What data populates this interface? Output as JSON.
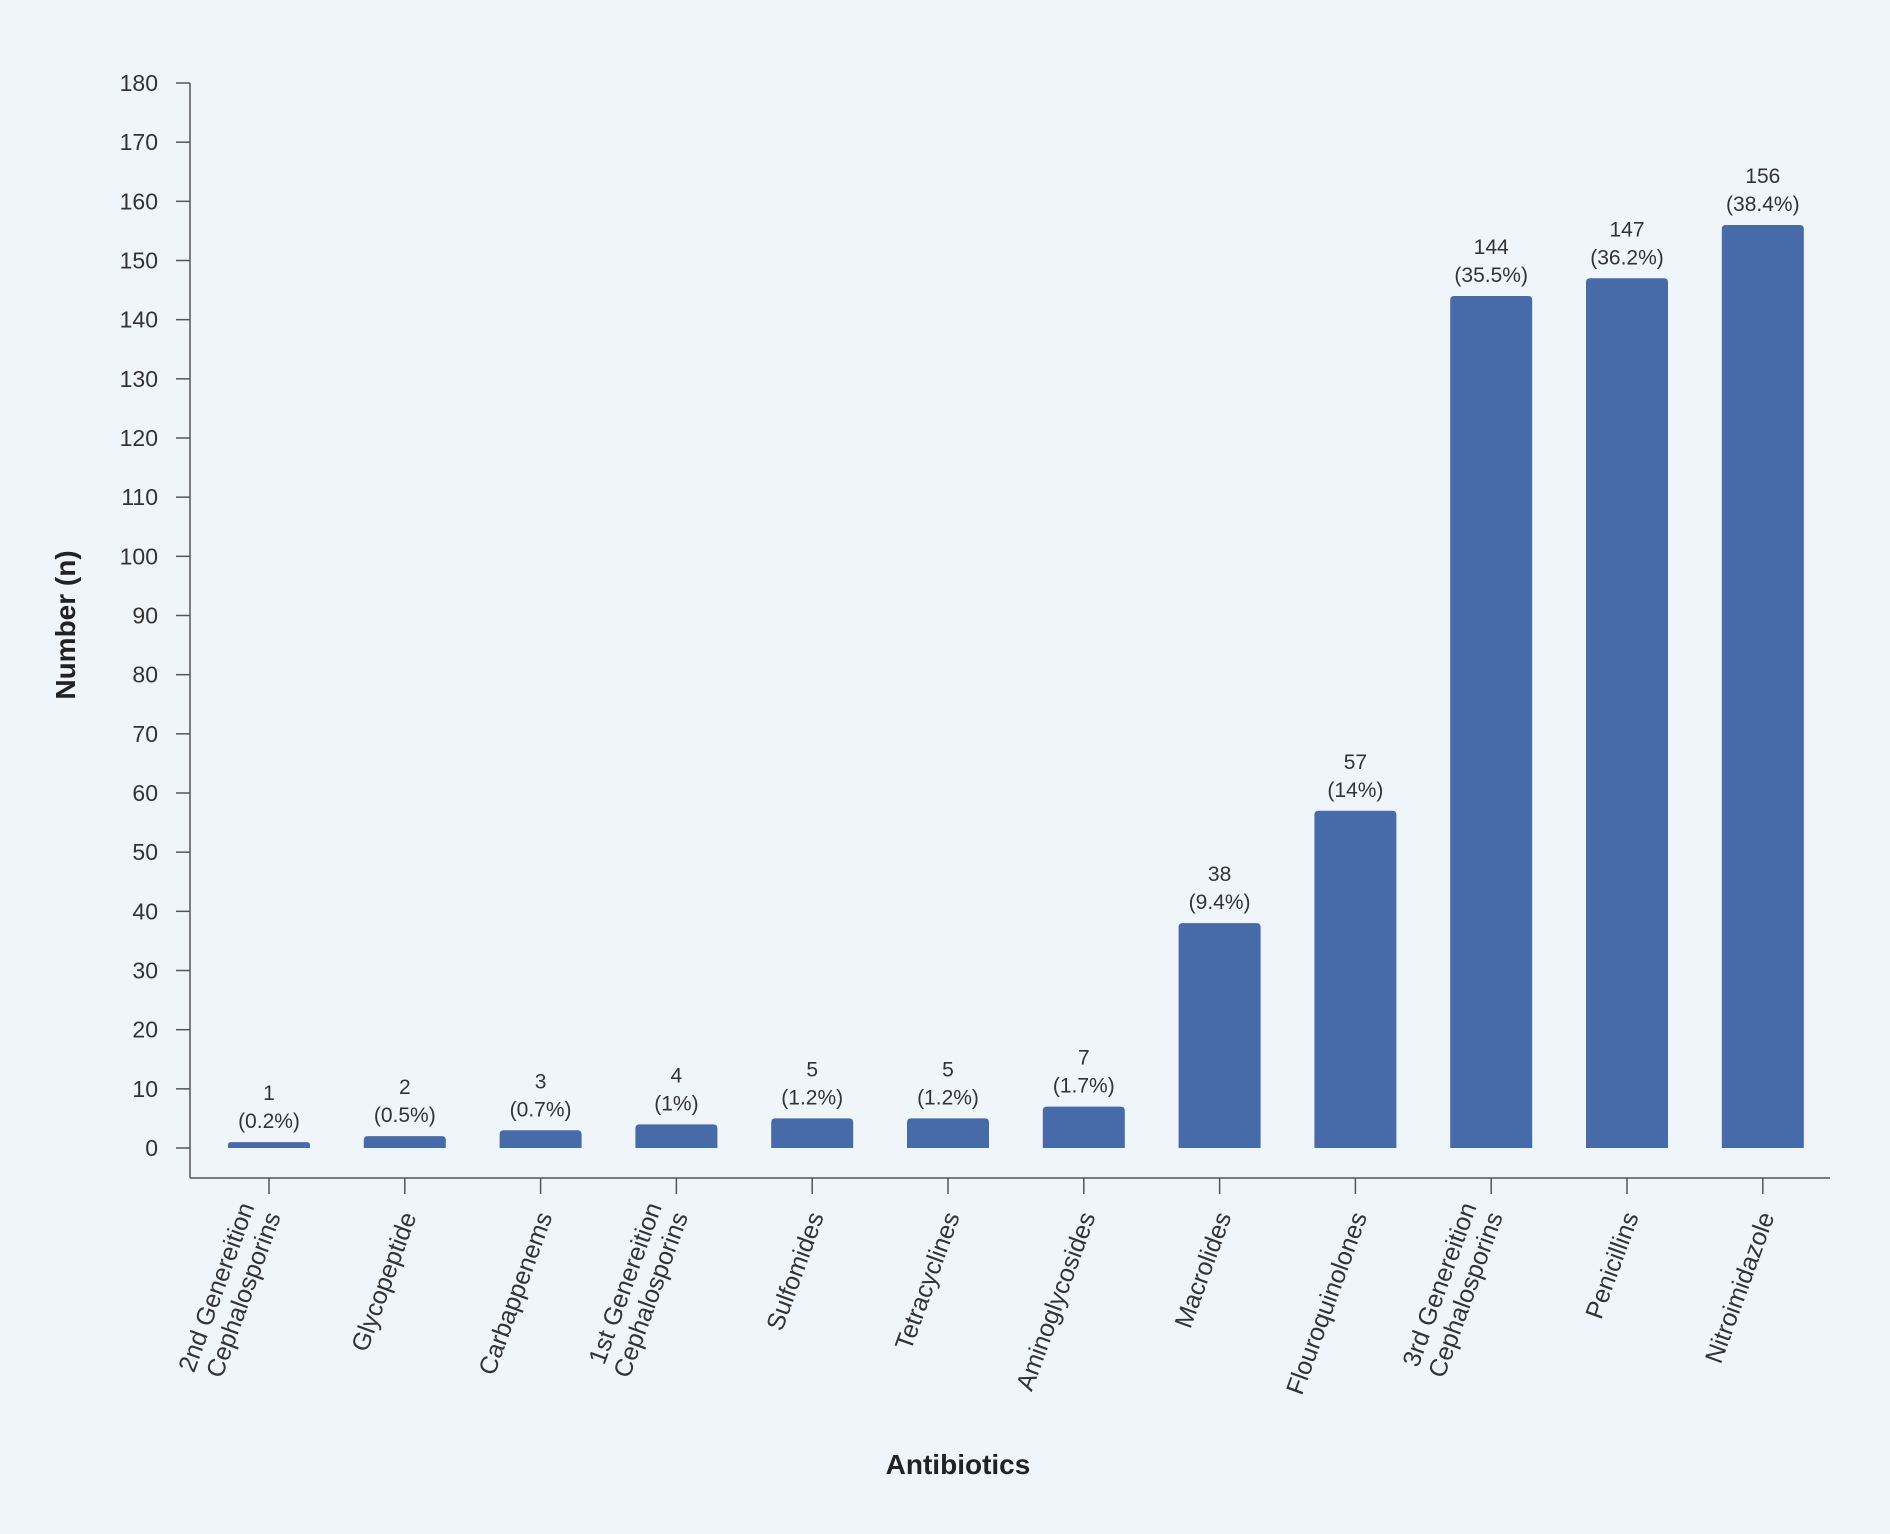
{
  "chart_data": {
    "type": "bar",
    "xlabel": "Antibiotics",
    "ylabel": "Number (n)",
    "ylim": [
      0,
      180
    ],
    "yticks": [
      0,
      10,
      20,
      30,
      40,
      50,
      60,
      70,
      80,
      90,
      100,
      110,
      120,
      130,
      140,
      150,
      160,
      170,
      180
    ],
    "grid": false,
    "categories": [
      [
        "2nd Genereition",
        "Cephalosporins"
      ],
      [
        "Glycopeptide"
      ],
      [
        "Carbappenems"
      ],
      [
        "1st Genereition",
        "Cephalosporins"
      ],
      [
        "Sulfomides"
      ],
      [
        "Tetracyclines"
      ],
      [
        "Aminoglycosides"
      ],
      [
        "Macrolides"
      ],
      [
        "Flouroquinolones"
      ],
      [
        "3rd Genereition",
        "Cephalosporins"
      ],
      [
        "Penicillins"
      ],
      [
        "Nitroimidazole"
      ]
    ],
    "values": [
      1,
      2,
      3,
      4,
      5,
      5,
      7,
      38,
      57,
      144,
      147,
      156
    ],
    "percent_labels": [
      "(0.2%)",
      "(0.5%)",
      "(0.7%)",
      "(1%)",
      "(1.2%)",
      "(1.2%)",
      "(1.7%)",
      "(9.4%)",
      "(14%)",
      "(35.5%)",
      "(36.2%)",
      "(38.4%)"
    ],
    "colors": {
      "bar": "#476ba8",
      "axis": "#555555",
      "background": "#f0f5fa"
    }
  }
}
